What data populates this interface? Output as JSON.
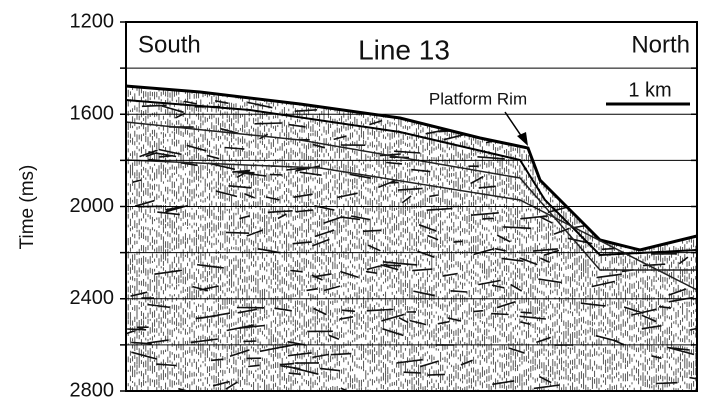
{
  "chart_data": {
    "type": "seismic",
    "title": "Line 13",
    "left_label": "South",
    "right_label": "North",
    "scale_label": "1 km",
    "annotation": "Platform Rim",
    "y_label": "Time (ms)",
    "ylim": [
      1200,
      2800
    ],
    "yticks": [
      1200,
      1600,
      2000,
      2400,
      2800
    ],
    "minor_yticks": [
      1400,
      1800,
      2200,
      2600
    ],
    "grid": true
  }
}
